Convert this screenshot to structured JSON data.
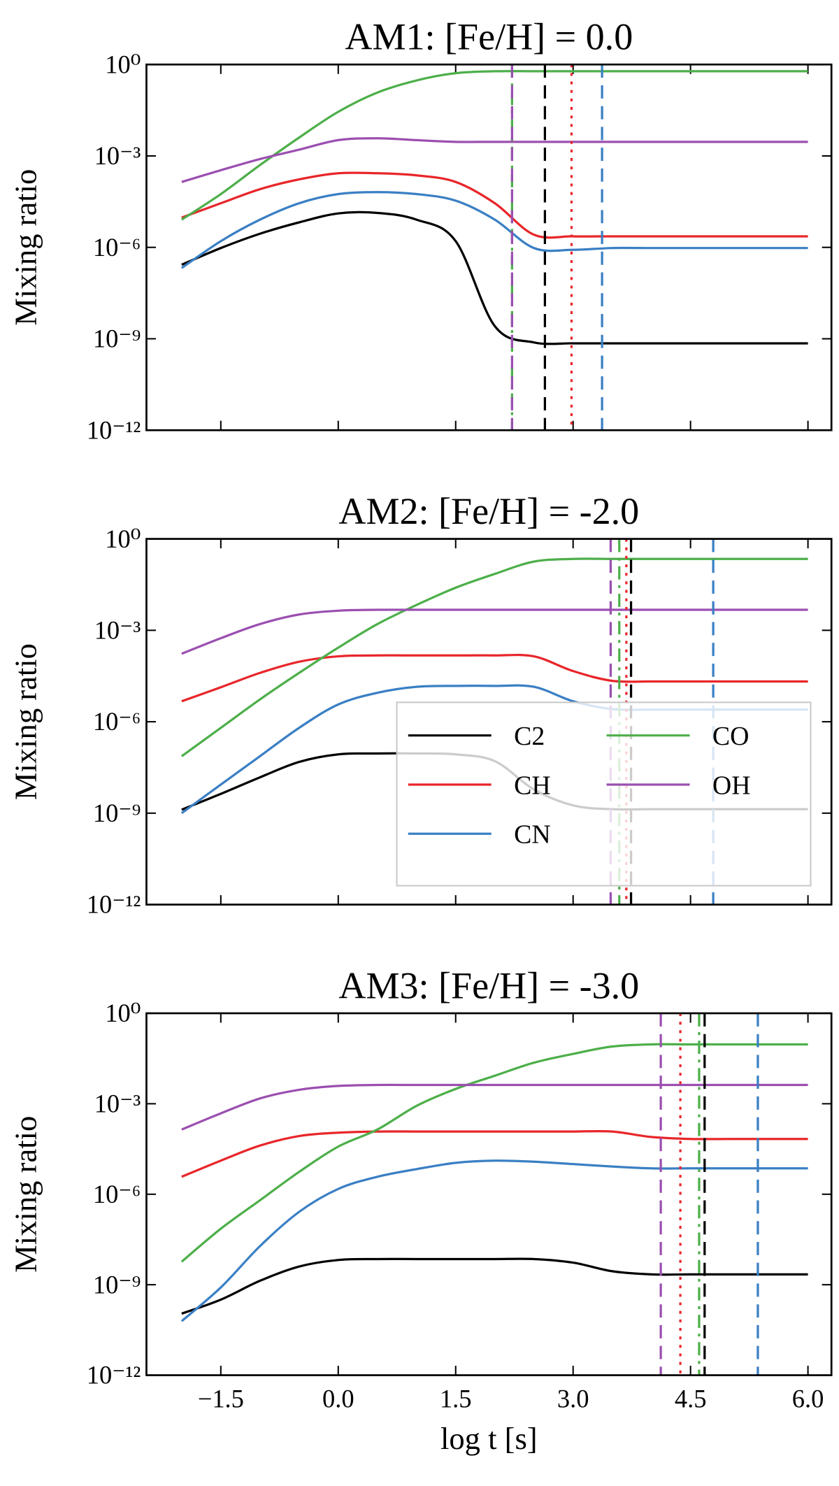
{
  "chart_data": [
    {
      "type": "line",
      "title": "AM1: [Fe/H] = 0.0",
      "ylabel": "Mixing ratio",
      "yscale": "log",
      "x": [
        -2,
        -1.5,
        -1,
        -0.5,
        0,
        0.5,
        1,
        1.5,
        2,
        2.5,
        3,
        3.5,
        4,
        4.5,
        5,
        5.5,
        6
      ],
      "xlim": [
        -2.45,
        6.3
      ],
      "xticks": [
        -1.5,
        0,
        1.5,
        3,
        4.5,
        6
      ],
      "ylim": [
        1e-12,
        1
      ],
      "yticks": [
        {
          "value": 1e-12,
          "label": "10⁻¹²"
        },
        {
          "value": 1e-09,
          "label": "10⁻⁹"
        },
        {
          "value": 1e-06,
          "label": "10⁻⁶"
        },
        {
          "value": 0.001,
          "label": "10⁻³"
        },
        {
          "value": 1,
          "label": "10⁰"
        }
      ],
      "series": [
        {
          "color": "#000000",
          "vline": 2.64,
          "vline_style": "dashed",
          "values": [
            2.7e-07,
            9.5e-07,
            2.8e-06,
            6.6e-06,
            1.3e-05,
            1.35e-05,
            8.1e-06,
            1.6e-06,
            2.6e-09,
            7.6e-10,
            7.1e-10,
            7.1e-10,
            7.1e-10,
            7.1e-10,
            7.1e-10,
            7.1e-10,
            7.1e-10
          ]
        },
        {
          "color": "#e8262a",
          "vline": 2.98,
          "vline_style": "dotted",
          "values": [
            9.5e-06,
            2.8e-05,
            8.1e-05,
            0.00017,
            0.00027,
            0.00027,
            0.00023,
            0.00014,
            2.8e-05,
            2.6e-06,
            2.3e-06,
            2.3e-06,
            2.3e-06,
            2.3e-06,
            2.3e-06,
            2.3e-06,
            2.3e-06
          ]
        },
        {
          "color": "#3a7fc4",
          "vline": 3.37,
          "vline_style": "dashed",
          "values": [
            2.1e-07,
            1.6e-06,
            8.1e-06,
            2.8e-05,
            5.6e-05,
            6.5e-05,
            5.6e-05,
            3.4e-05,
            8.1e-06,
            9.5e-07,
            8.3e-07,
            9.5e-07,
            9.5e-07,
            9.5e-07,
            9.5e-07,
            9.5e-07,
            9.5e-07
          ]
        },
        {
          "color": "#4daf4a",
          "vline": 2.22,
          "vline_style": "dashdot",
          "values": [
            8.1e-06,
            5.6e-05,
            0.0005,
            0.004,
            0.028,
            0.12,
            0.3,
            0.52,
            0.6,
            0.6,
            0.6,
            0.6,
            0.6,
            0.6,
            0.6,
            0.6,
            0.6
          ]
        },
        {
          "color": "#9b4fb0",
          "vline": 2.22,
          "vline_style": "dashed",
          "values": [
            0.00014,
            0.00034,
            0.00079,
            0.0016,
            0.0033,
            0.0038,
            0.0033,
            0.0029,
            0.0029,
            0.0029,
            0.0029,
            0.0029,
            0.0029,
            0.0029,
            0.0029,
            0.0029,
            0.0029
          ]
        }
      ]
    },
    {
      "type": "line",
      "title": "AM2: [Fe/H] = -2.0",
      "ylabel": "Mixing ratio",
      "yscale": "log",
      "legend": "lower right",
      "x": [
        -2,
        -1.5,
        -1,
        -0.5,
        0,
        0.5,
        1,
        1.5,
        2,
        2.5,
        3,
        3.5,
        4,
        4.5,
        5,
        5.5,
        6
      ],
      "xlim": [
        -2.45,
        6.3
      ],
      "xticks": [
        -1.5,
        0,
        1.5,
        3,
        4.5,
        6
      ],
      "ylim": [
        1e-12,
        1
      ],
      "yticks": [
        {
          "value": 1e-12,
          "label": "10⁻¹²"
        },
        {
          "value": 1e-09,
          "label": "10⁻⁹"
        },
        {
          "value": 1e-06,
          "label": "10⁻⁶"
        },
        {
          "value": 0.001,
          "label": "10⁻³"
        },
        {
          "value": 1,
          "label": "10⁰"
        }
      ],
      "series": [
        {
          "name": "C2",
          "color": "#000000",
          "vline": 3.74,
          "vline_style": "dashed",
          "values": [
            1.3e-09,
            4.3e-09,
            1.5e-08,
            4.8e-08,
            8.5e-08,
            9.1e-08,
            9.1e-08,
            8.5e-08,
            5.1e-08,
            6e-09,
            1.8e-09,
            1.35e-09,
            1.35e-09,
            1.35e-09,
            1.35e-09,
            1.35e-09,
            1.35e-09
          ]
        },
        {
          "name": "CH",
          "color": "#e8262a",
          "vline": 3.68,
          "vline_style": "dotted",
          "values": [
            4.7e-06,
            1.35e-05,
            4e-05,
            9.3e-05,
            0.00014,
            0.00015,
            0.00015,
            0.00015,
            0.00015,
            0.00014,
            4.6e-05,
            2.2e-05,
            2.1e-05,
            2.1e-05,
            2.1e-05,
            2.1e-05,
            2.1e-05
          ]
        },
        {
          "name": "CN",
          "color": "#3a7fc4",
          "vline": 4.79,
          "vline_style": "dashed",
          "values": [
            1e-09,
            8.7e-09,
            7.4e-08,
            6.3e-07,
            3.7e-06,
            8.9e-06,
            1.4e-05,
            1.5e-05,
            1.5e-05,
            1.4e-05,
            4.7e-06,
            2.6e-06,
            2.5e-06,
            2.5e-06,
            2.5e-06,
            2.5e-06,
            2.5e-06
          ]
        },
        {
          "name": "CO",
          "color": "#4daf4a",
          "vline": 3.59,
          "vline_style": "dashdot",
          "values": [
            7.4e-08,
            6.3e-07,
            5.4e-06,
            4e-05,
            0.00027,
            0.0016,
            0.0068,
            0.025,
            0.071,
            0.18,
            0.22,
            0.22,
            0.22,
            0.22,
            0.22,
            0.22,
            0.22
          ]
        },
        {
          "name": "OH",
          "color": "#9b4fb0",
          "vline": 3.48,
          "vline_style": "dashed",
          "values": [
            0.00017,
            0.00055,
            0.0016,
            0.0033,
            0.0044,
            0.0047,
            0.0047,
            0.0047,
            0.0047,
            0.0047,
            0.0047,
            0.0047,
            0.0047,
            0.0047,
            0.0047,
            0.0047,
            0.0047
          ]
        }
      ]
    },
    {
      "type": "line",
      "title": "AM3: [Fe/H] = -3.0",
      "ylabel": "Mixing ratio",
      "xlabel": "log t [s]",
      "yscale": "log",
      "x": [
        -2,
        -1.5,
        -1,
        -0.5,
        0,
        0.5,
        1,
        1.5,
        2,
        2.5,
        3,
        3.5,
        4,
        4.5,
        5,
        5.5,
        6
      ],
      "xlim": [
        -2.45,
        6.3
      ],
      "xticks": [
        {
          "value": -1.5,
          "label": "−1.5"
        },
        {
          "value": 0,
          "label": "0.0"
        },
        1.5,
        {
          "value": 3,
          "label": "3.0"
        },
        4.5,
        {
          "value": 6,
          "label": "6.0"
        }
      ],
      "ylim": [
        1e-12,
        1
      ],
      "yticks": [
        {
          "value": 1e-12,
          "label": "10⁻¹²"
        },
        {
          "value": 1e-09,
          "label": "10⁻⁹"
        },
        {
          "value": 1e-06,
          "label": "10⁻⁶"
        },
        {
          "value": 0.001,
          "label": "10⁻³"
        },
        {
          "value": 1,
          "label": "10⁰"
        }
      ],
      "series": [
        {
          "color": "#000000",
          "vline": 4.68,
          "vline_style": "dashed",
          "values": [
            1.1e-10,
            3.2e-10,
            1.35e-09,
            4e-09,
            6.6e-09,
            7.1e-09,
            7.1e-09,
            7.1e-09,
            7.1e-09,
            7.1e-09,
            5.4e-09,
            2.8e-09,
            2.2e-09,
            2.2e-09,
            2.2e-09,
            2.2e-09,
            2.2e-09
          ]
        },
        {
          "color": "#e8262a",
          "vline": 4.37,
          "vline_style": "dotted",
          "values": [
            3.8e-06,
            1.3e-05,
            4.1e-05,
            8.5e-05,
            0.00011,
            0.00012,
            0.00012,
            0.00012,
            0.00012,
            0.00012,
            0.00012,
            0.00012,
            7.9e-05,
            6.8e-05,
            6.8e-05,
            6.8e-05,
            6.8e-05
          ]
        },
        {
          "color": "#3a7fc4",
          "vline": 5.36,
          "vline_style": "dashed",
          "values": [
            6.2e-11,
            8.1e-10,
            1.9e-08,
            2.6e-07,
            1.5e-06,
            3.8e-06,
            6.8e-06,
            1.1e-05,
            1.3e-05,
            1.2e-05,
            1e-05,
            8.3e-06,
            7.2e-06,
            7.2e-06,
            7.2e-06,
            7.2e-06,
            7.2e-06
          ]
        },
        {
          "color": "#4daf4a",
          "vline": 4.61,
          "vline_style": "dashdot",
          "values": [
            5.8e-09,
            7.2e-08,
            6.3e-07,
            5.5e-06,
            3.8e-05,
            0.00014,
            0.00085,
            0.0031,
            0.0085,
            0.023,
            0.045,
            0.079,
            0.093,
            0.093,
            0.093,
            0.093,
            0.093
          ]
        },
        {
          "color": "#9b4fb0",
          "vline": 4.12,
          "vline_style": "dashed",
          "values": [
            0.00014,
            0.00048,
            0.0015,
            0.0029,
            0.0039,
            0.0042,
            0.0042,
            0.0042,
            0.0042,
            0.0042,
            0.0042,
            0.0042,
            0.0042,
            0.0042,
            0.0042,
            0.0042,
            0.0042
          ]
        }
      ]
    }
  ]
}
